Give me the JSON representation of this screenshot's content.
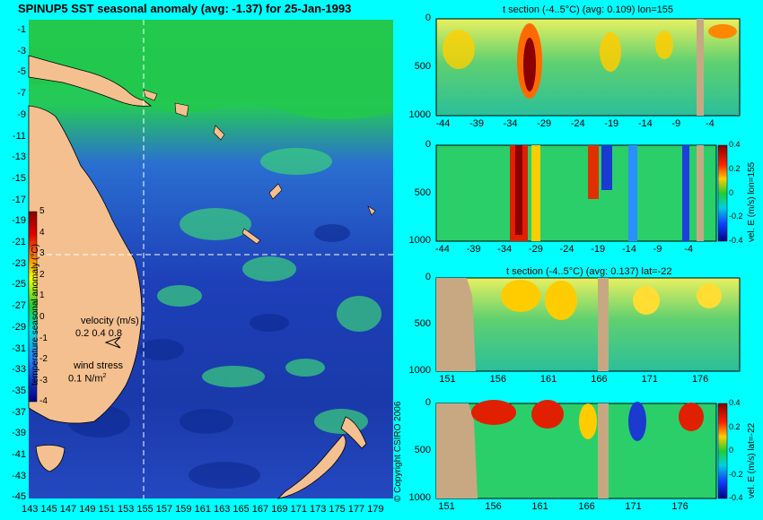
{
  "colors": {
    "background": "#00ffff",
    "land": "#f4c08f",
    "section_land": "#c8a882",
    "guide": "#ffffff"
  },
  "map": {
    "title": "SPINUP5 SST seasonal anomaly (avg: -1.37) for 25-Jan-1993",
    "lat_ticks": [
      "-1",
      "-3",
      "-5",
      "-7",
      "-9",
      "-11",
      "-13",
      "-15",
      "-17",
      "-19",
      "-21",
      "-23",
      "-25",
      "-27",
      "-29",
      "-31",
      "-33",
      "-35",
      "-37",
      "-39",
      "-41",
      "-43",
      "-45"
    ],
    "lon_ticks": [
      "143",
      "145",
      "147",
      "149",
      "151",
      "153",
      "155",
      "157",
      "159",
      "161",
      "163",
      "165",
      "167",
      "169",
      "171",
      "173",
      "175",
      "177",
      "179"
    ],
    "colorbar_label": "temperature seasonal anomaly (°C)",
    "colorbar_ticks": [
      "5",
      "4",
      "3",
      "2",
      "1",
      "0",
      "-1",
      "-2",
      "-3",
      "-4"
    ],
    "velocity_label": "velocity (m/s)",
    "velocity_values": "0.2 0.4 0.8",
    "wind_label": "wind stress",
    "wind_value": "0.1 N/m",
    "wind_unit_sup": "2",
    "guide_lon": 155,
    "guide_lat": -22,
    "copyright": "© Copyright CSIRO 2006"
  },
  "panels": [
    {
      "title": "t section (-4..5°C) (avg: 0.109) lon=155",
      "y_ticks": [
        "0",
        "500",
        "1000"
      ],
      "x_ticks": [
        "-44",
        "-39",
        "-34",
        "-29",
        "-24",
        "-19",
        "-14",
        "-9",
        "-4"
      ]
    },
    {
      "title": "",
      "y_ticks": [
        "0",
        "500",
        "1000"
      ],
      "x_ticks": [
        "-44",
        "-39",
        "-34",
        "-29",
        "-24",
        "-19",
        "-14",
        "-9",
        "-4"
      ],
      "cbar_label": "vel. E (m/s) lon=155",
      "cbar_ticks": [
        "0.4",
        "0.2",
        "0",
        "-0.2",
        "-0.4"
      ]
    },
    {
      "title": "t section (-4..5°C) (avg: 0.137) lat=-22",
      "y_ticks": [
        "0",
        "500",
        "1000"
      ],
      "x_ticks": [
        "151",
        "156",
        "161",
        "166",
        "171",
        "176"
      ]
    },
    {
      "title": "",
      "y_ticks": [
        "0",
        "500",
        "1000"
      ],
      "x_ticks": [
        "151",
        "156",
        "161",
        "166",
        "171",
        "176"
      ],
      "cbar_label": "vel. E (m/s) lat=-22",
      "cbar_ticks": [
        "0.4",
        "0.2",
        "0",
        "-0.2",
        "-0.4"
      ]
    }
  ],
  "chart_data": [
    {
      "type": "heatmap",
      "title": "SPINUP5 SST seasonal anomaly (avg: -1.37) for 25-Jan-1993",
      "xlabel": "",
      "ylabel": "",
      "xlim": [
        142,
        180
      ],
      "ylim": [
        -45,
        0
      ],
      "colorbar_range": [
        -4,
        5
      ],
      "average": -1.37,
      "date": "25-Jan-1993"
    },
    {
      "type": "heatmap",
      "title": "t section (-4..5°C) (avg: 0.109) lon=155",
      "xlim": [
        -45,
        0
      ],
      "ylim": [
        1000,
        0
      ],
      "average": 0.109,
      "x_ticks": [
        -44,
        -39,
        -34,
        -29,
        -24,
        -19,
        -14,
        -9,
        -4
      ],
      "y_ticks": [
        0,
        500,
        1000
      ]
    },
    {
      "type": "heatmap",
      "title": "",
      "colorbar_label": "vel. E (m/s) lon=155",
      "colorbar_range": [
        -0.4,
        0.4
      ],
      "xlim": [
        -45,
        0
      ],
      "ylim": [
        1000,
        0
      ],
      "x_ticks": [
        -44,
        -39,
        -34,
        -29,
        -24,
        -19,
        -14,
        -9,
        -4
      ],
      "y_ticks": [
        0,
        500,
        1000
      ]
    },
    {
      "type": "heatmap",
      "title": "t section (-4..5°C) (avg: 0.137) lat=-22",
      "xlim": [
        150,
        180
      ],
      "ylim": [
        1000,
        0
      ],
      "average": 0.137,
      "x_ticks": [
        151,
        156,
        161,
        166,
        171,
        176
      ],
      "y_ticks": [
        0,
        500,
        1000
      ]
    },
    {
      "type": "heatmap",
      "title": "",
      "colorbar_label": "vel. E (m/s) lat=-22",
      "colorbar_range": [
        -0.4,
        0.4
      ],
      "xlim": [
        150,
        180
      ],
      "ylim": [
        1000,
        0
      ],
      "x_ticks": [
        151,
        156,
        161,
        166,
        171,
        176
      ],
      "y_ticks": [
        0,
        500,
        1000
      ]
    }
  ]
}
